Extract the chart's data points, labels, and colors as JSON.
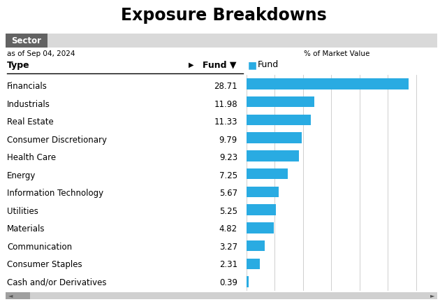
{
  "title": "Exposure Breakdowns",
  "subtitle": "as of Sep 04, 2024",
  "col_header_center": "% of Market Value",
  "tab_label": "Sector",
  "legend_label": "Fund",
  "type_label": "Type",
  "fund_label": "Fund ▼",
  "categories": [
    "Financials",
    "Industrials",
    "Real Estate",
    "Consumer Discretionary",
    "Health Care",
    "Energy",
    "Information Technology",
    "Utilities",
    "Materials",
    "Communication",
    "Consumer Staples",
    "Cash and/or Derivatives"
  ],
  "values": [
    28.71,
    11.98,
    11.33,
    9.79,
    9.23,
    7.25,
    5.67,
    5.25,
    4.82,
    3.27,
    2.31,
    0.39
  ],
  "bar_color": "#29ABE2",
  "background_color": "#ffffff",
  "tab_bg_color": "#636363",
  "tab_text_color": "#ffffff",
  "strip_bg_color": "#d9d9d9",
  "title_fontsize": 17,
  "cat_fontsize": 8.5,
  "val_fontsize": 8.5,
  "header_fontsize": 9,
  "xlim_max": 32,
  "fig_width": 6.4,
  "fig_height": 4.32,
  "dpi": 100
}
